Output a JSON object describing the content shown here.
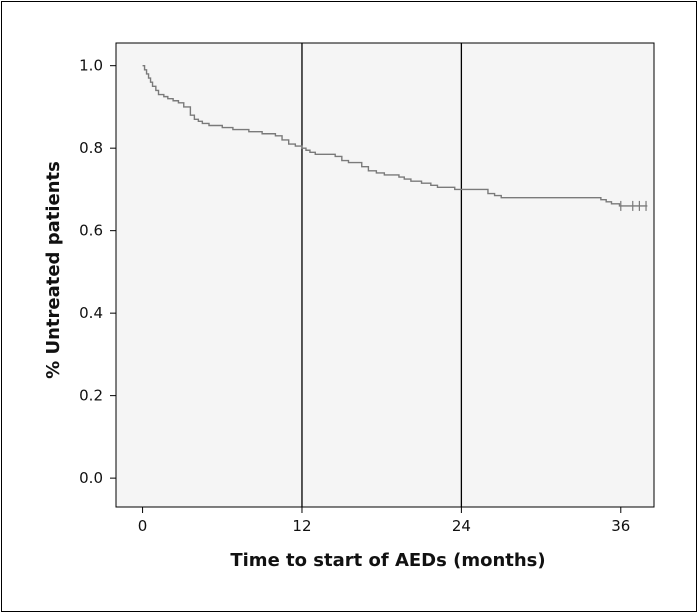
{
  "chart_data": {
    "type": "line",
    "title": "",
    "xlabel": "Time to start of AEDs (months)",
    "ylabel": "% Untreated patients",
    "xlim": [
      -2,
      38.5
    ],
    "ylim": [
      -0.07,
      1.055
    ],
    "xticks": [
      0,
      12,
      24,
      36
    ],
    "xtick_labels": [
      "0",
      "12",
      "24",
      "36"
    ],
    "yticks": [
      0.0,
      0.2,
      0.4,
      0.6,
      0.8,
      1.0
    ],
    "ytick_labels": [
      "0.0",
      "0.2",
      "0.4",
      "0.6",
      "0.8",
      "1.0"
    ],
    "reference_lines_x": [
      12,
      24
    ],
    "grid": false,
    "legend": "none",
    "series": [
      {
        "style": "step",
        "color": "#7a7a7a",
        "x": [
          0,
          0.15,
          0.3,
          0.45,
          0.6,
          0.75,
          1.0,
          1.2,
          1.6,
          1.9,
          2.3,
          2.7,
          3.1,
          3.6,
          3.9,
          4.2,
          4.5,
          5.0,
          6.0,
          6.8,
          8.0,
          9.0,
          10.0,
          10.5,
          11.0,
          11.5,
          12.0,
          12.3,
          12.6,
          13.0,
          14.5,
          15.0,
          15.5,
          16.5,
          17.0,
          17.6,
          18.2,
          19.3,
          19.7,
          20.2,
          21.0,
          21.7,
          22.2,
          23.5,
          24.0,
          26.0,
          26.5,
          27.0,
          28.0,
          34.5,
          34.9,
          35.3,
          35.9,
          38.0
        ],
        "y": [
          1.0,
          0.99,
          0.98,
          0.97,
          0.96,
          0.95,
          0.94,
          0.93,
          0.925,
          0.92,
          0.915,
          0.91,
          0.9,
          0.88,
          0.87,
          0.865,
          0.86,
          0.855,
          0.85,
          0.845,
          0.84,
          0.835,
          0.83,
          0.82,
          0.81,
          0.805,
          0.8,
          0.795,
          0.79,
          0.785,
          0.78,
          0.77,
          0.765,
          0.755,
          0.745,
          0.74,
          0.735,
          0.73,
          0.725,
          0.72,
          0.715,
          0.71,
          0.705,
          0.7,
          0.7,
          0.69,
          0.685,
          0.68,
          0.68,
          0.675,
          0.67,
          0.665,
          0.66,
          0.66
        ],
        "censor_marks_x": [
          36.0,
          36.9,
          37.4,
          37.9
        ]
      }
    ]
  }
}
